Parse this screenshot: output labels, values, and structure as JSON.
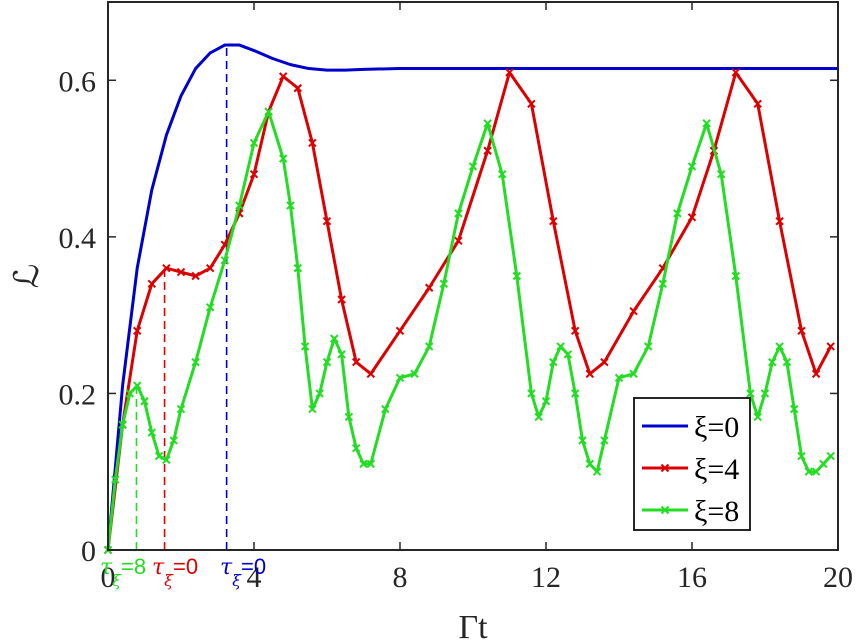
{
  "chart_data": {
    "type": "line",
    "xlabel": "Γt",
    "ylabel": "ℒ",
    "xlim": [
      0,
      20
    ],
    "ylim": [
      0,
      0.7
    ],
    "xticks": [
      0,
      4,
      8,
      12,
      16,
      20
    ],
    "yticks": [
      0,
      0.2,
      0.4,
      0.6
    ],
    "xtick_labels": [
      "0",
      "4",
      "8",
      "12",
      "16",
      "20"
    ],
    "ytick_labels": [
      "0",
      "0.2",
      "0.4",
      "0.6"
    ],
    "grid": false,
    "legend_position": "bottom-right",
    "series": [
      {
        "name": "ξ=0",
        "color": "#0000cc",
        "marker": "none",
        "x": [
          0,
          0.4,
          0.8,
          1.2,
          1.6,
          2.0,
          2.4,
          2.8,
          3.2,
          3.6,
          4.0,
          4.5,
          5.0,
          5.5,
          6.0,
          6.5,
          7.0,
          8.0,
          10.0,
          12.0,
          14.0,
          16.0,
          18.0,
          20.0
        ],
        "y": [
          0,
          0.21,
          0.36,
          0.46,
          0.53,
          0.58,
          0.615,
          0.635,
          0.645,
          0.645,
          0.638,
          0.628,
          0.62,
          0.615,
          0.613,
          0.613,
          0.614,
          0.615,
          0.615,
          0.615,
          0.615,
          0.615,
          0.615,
          0.615
        ]
      },
      {
        "name": "ξ=4",
        "color": "#dd0000",
        "marker": "x",
        "x": [
          0,
          0.4,
          0.8,
          1.2,
          1.6,
          2.0,
          2.4,
          2.8,
          3.2,
          3.6,
          4.0,
          4.4,
          4.8,
          5.2,
          5.6,
          6.0,
          6.4,
          6.8,
          7.2,
          8.0,
          8.8,
          9.6,
          10.4,
          11.0,
          11.6,
          12.2,
          12.8,
          13.2,
          13.6,
          14.4,
          15.2,
          16.0,
          16.6,
          17.2,
          17.8,
          18.4,
          19.0,
          19.4,
          19.8
        ],
        "y": [
          0,
          0.16,
          0.28,
          0.34,
          0.36,
          0.355,
          0.35,
          0.36,
          0.39,
          0.43,
          0.48,
          0.56,
          0.605,
          0.59,
          0.52,
          0.42,
          0.32,
          0.24,
          0.225,
          0.28,
          0.335,
          0.395,
          0.51,
          0.61,
          0.57,
          0.42,
          0.28,
          0.225,
          0.24,
          0.305,
          0.36,
          0.425,
          0.51,
          0.61,
          0.57,
          0.42,
          0.28,
          0.225,
          0.26
        ]
      },
      {
        "name": "ξ=8",
        "color": "#22dd22",
        "marker": "x",
        "x": [
          0,
          0.2,
          0.4,
          0.6,
          0.8,
          1.0,
          1.2,
          1.4,
          1.6,
          1.8,
          2.0,
          2.4,
          2.8,
          3.2,
          3.6,
          4.0,
          4.4,
          4.8,
          5.0,
          5.2,
          5.4,
          5.6,
          5.8,
          6.0,
          6.2,
          6.4,
          6.6,
          6.8,
          7.0,
          7.2,
          7.6,
          8.0,
          8.4,
          8.8,
          9.2,
          9.6,
          10.0,
          10.4,
          10.8,
          11.2,
          11.6,
          11.8,
          12.0,
          12.2,
          12.4,
          12.6,
          12.8,
          13.0,
          13.2,
          13.4,
          13.6,
          14.0,
          14.4,
          14.8,
          15.2,
          15.6,
          16.0,
          16.4,
          16.8,
          17.2,
          17.6,
          17.8,
          18.0,
          18.2,
          18.4,
          18.6,
          18.8,
          19.0,
          19.2,
          19.4,
          19.6,
          19.8
        ],
        "y": [
          0,
          0.09,
          0.16,
          0.2,
          0.21,
          0.19,
          0.15,
          0.12,
          0.115,
          0.14,
          0.18,
          0.24,
          0.31,
          0.37,
          0.44,
          0.52,
          0.56,
          0.5,
          0.44,
          0.36,
          0.26,
          0.18,
          0.2,
          0.24,
          0.27,
          0.25,
          0.17,
          0.13,
          0.11,
          0.11,
          0.18,
          0.22,
          0.225,
          0.26,
          0.34,
          0.43,
          0.49,
          0.545,
          0.48,
          0.35,
          0.2,
          0.17,
          0.19,
          0.24,
          0.26,
          0.25,
          0.2,
          0.14,
          0.11,
          0.1,
          0.14,
          0.22,
          0.225,
          0.26,
          0.34,
          0.43,
          0.49,
          0.545,
          0.48,
          0.35,
          0.2,
          0.17,
          0.2,
          0.24,
          0.26,
          0.24,
          0.18,
          0.12,
          0.1,
          0.1,
          0.11,
          0.12
        ]
      }
    ],
    "markers": [
      {
        "label_prefix": "τ",
        "subscript": "ξ",
        "label_suffix": "=0",
        "color": "#0000cc",
        "x": 3.25
      },
      {
        "label_prefix": "τ",
        "subscript": "ξ",
        "label_suffix": "=0",
        "color": "#dd0000",
        "x": 1.55
      },
      {
        "label_prefix": "τ",
        "subscript": "ξ",
        "label_suffix": "=8",
        "color": "#22dd22",
        "x": 0.78
      }
    ]
  }
}
